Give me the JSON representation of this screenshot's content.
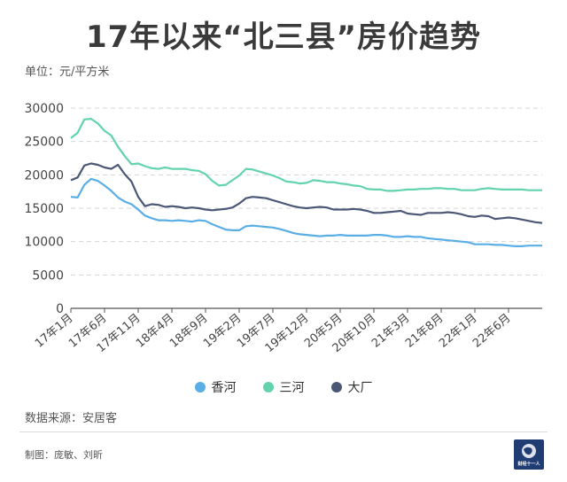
{
  "title": "17年以来“北三县”房价趋势",
  "unit_label": "单位：元/平方米",
  "source": "数据来源：安居客",
  "credits": "制图：庞敏、刘昕",
  "logo_text": "财经十一人",
  "chart_data": {
    "type": "line",
    "ylim": [
      0,
      30000
    ],
    "yticks": [
      0,
      5000,
      10000,
      15000,
      20000,
      25000,
      30000
    ],
    "xtick_labels": [
      "17年1月",
      "17年6月",
      "17年11月",
      "18年4月",
      "18年9月",
      "19年2月",
      "19年7月",
      "19年12月",
      "20年5月",
      "20年10月",
      "21年3月",
      "21年8月",
      "22年1月",
      "22年6月"
    ],
    "x_start_label": "17年1月",
    "x_months": 71,
    "grid": "horizontal-dashed",
    "legend_position": "bottom",
    "series": [
      {
        "name": "香河",
        "color": "#5aaee6",
        "values": [
          16700,
          16600,
          18500,
          19400,
          19100,
          18400,
          17600,
          16600,
          16000,
          15600,
          14800,
          13900,
          13500,
          13200,
          13200,
          13100,
          13200,
          13100,
          13000,
          13200,
          13100,
          12600,
          12200,
          11800,
          11700,
          11700,
          12300,
          12400,
          12300,
          12200,
          12100,
          11900,
          11600,
          11300,
          11100,
          11000,
          10900,
          10800,
          10900,
          10900,
          11000,
          10900,
          10900,
          10900,
          10900,
          11000,
          11000,
          10900,
          10700,
          10700,
          10800,
          10700,
          10700,
          10500,
          10400,
          10300,
          10200,
          10100,
          10000,
          9900,
          9600,
          9600,
          9600,
          9500,
          9500,
          9400,
          9300,
          9300,
          9400,
          9400,
          9400
        ]
      },
      {
        "name": "三河",
        "color": "#62d3ad",
        "values": [
          25500,
          26300,
          28300,
          28400,
          27700,
          26600,
          25900,
          24200,
          22800,
          21600,
          21700,
          21300,
          21000,
          20900,
          21100,
          20900,
          20900,
          20900,
          20700,
          20600,
          20100,
          19100,
          18400,
          18500,
          19200,
          19900,
          20900,
          20800,
          20500,
          20200,
          19900,
          19500,
          19000,
          18900,
          18700,
          18800,
          19200,
          19100,
          18900,
          18900,
          18700,
          18600,
          18400,
          18300,
          17900,
          17800,
          17800,
          17600,
          17600,
          17700,
          17800,
          17800,
          17900,
          17900,
          18000,
          18000,
          17900,
          17900,
          17700,
          17700,
          17700,
          17900,
          18000,
          17900,
          17800,
          17800,
          17800,
          17800,
          17700,
          17700,
          17700
        ]
      },
      {
        "name": "大厂",
        "color": "#4a5876",
        "values": [
          19200,
          19600,
          21400,
          21700,
          21500,
          21100,
          20900,
          21500,
          20100,
          19000,
          16700,
          15300,
          15600,
          15500,
          15200,
          15300,
          15200,
          15000,
          15100,
          15000,
          14800,
          14700,
          14800,
          14900,
          15100,
          15700,
          16500,
          16700,
          16600,
          16500,
          16200,
          15900,
          15600,
          15300,
          15100,
          15000,
          15100,
          15200,
          15100,
          14800,
          14800,
          14800,
          14900,
          14800,
          14600,
          14300,
          14300,
          14400,
          14500,
          14600,
          14200,
          14100,
          14000,
          14300,
          14300,
          14300,
          14400,
          14300,
          14100,
          13800,
          13700,
          13900,
          13800,
          13400,
          13500,
          13600,
          13500,
          13300,
          13100,
          12900,
          12800
        ]
      }
    ]
  }
}
